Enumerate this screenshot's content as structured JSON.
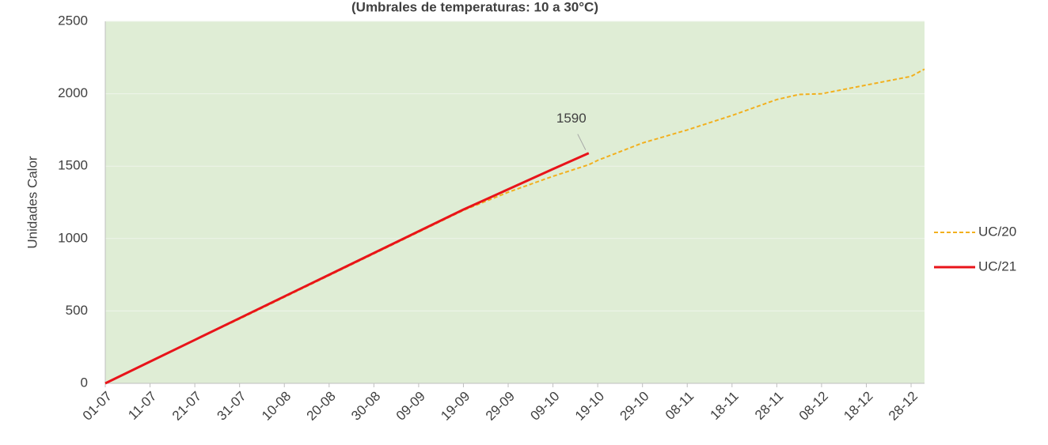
{
  "chart_data": {
    "type": "line",
    "title": "(Umbrales de temperaturas: 10 a  30°C)",
    "y_label": "Unidades Calor",
    "x": [
      "01-07",
      "11-07",
      "21-07",
      "31-07",
      "10-08",
      "20-08",
      "30-08",
      "09-09",
      "19-09",
      "29-09",
      "09-10",
      "17-10",
      "19-10",
      "29-10",
      "08-11",
      "18-11",
      "28-11",
      "03-12",
      "08-12",
      "18-12",
      "28-12",
      "31-12"
    ],
    "series": [
      {
        "name": "UC/20",
        "color": "#f2b01e",
        "dashed": true,
        "values": [
          0,
          150,
          300,
          445,
          595,
          745,
          895,
          1045,
          1195,
          1320,
          1430,
          1510,
          1540,
          1660,
          1750,
          1850,
          1960,
          1995,
          2000,
          2060,
          2120,
          2170
        ]
      },
      {
        "name": "UC/21",
        "color": "#e8141a",
        "dashed": false,
        "values": [
          0,
          150,
          300,
          450,
          600,
          750,
          900,
          1050,
          1200,
          1340,
          1480,
          1590,
          null,
          null,
          null,
          null,
          null,
          null,
          null,
          null,
          null,
          null
        ]
      }
    ],
    "labeled_point": "chart_data.series.1.values.11",
    "xlim": [
      "01-07",
      "31-12"
    ],
    "xticks": [
      "01-07",
      "11-07",
      "21-07",
      "31-07",
      "10-08",
      "20-08",
      "30-08",
      "09-09",
      "19-09",
      "29-09",
      "09-10",
      "19-10",
      "29-10",
      "08-11",
      "18-11",
      "28-11",
      "08-12",
      "18-12",
      "28-12"
    ],
    "ylim": [
      0,
      2500
    ],
    "yticks": [
      0,
      500,
      1000,
      1500,
      2000,
      2500
    ],
    "grid": true,
    "plot_background": "#dfedd5",
    "legend": "right"
  }
}
